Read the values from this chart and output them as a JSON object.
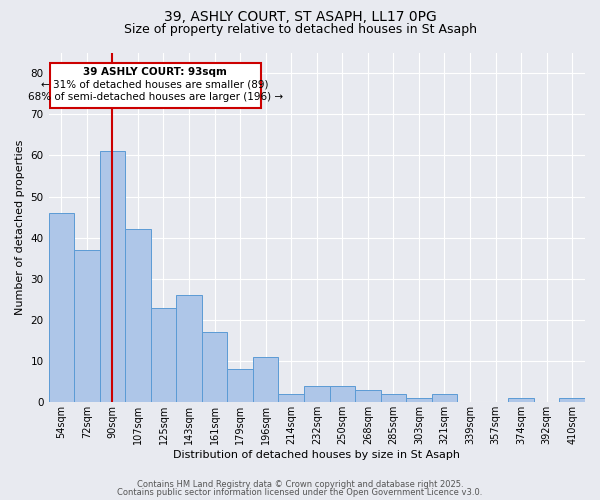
{
  "title": "39, ASHLY COURT, ST ASAPH, LL17 0PG",
  "subtitle": "Size of property relative to detached houses in St Asaph",
  "xlabel": "Distribution of detached houses by size in St Asaph",
  "ylabel": "Number of detached properties",
  "categories": [
    "54sqm",
    "72sqm",
    "90sqm",
    "107sqm",
    "125sqm",
    "143sqm",
    "161sqm",
    "179sqm",
    "196sqm",
    "214sqm",
    "232sqm",
    "250sqm",
    "268sqm",
    "285sqm",
    "303sqm",
    "321sqm",
    "339sqm",
    "357sqm",
    "374sqm",
    "392sqm",
    "410sqm"
  ],
  "values": [
    46,
    37,
    61,
    42,
    23,
    26,
    17,
    8,
    11,
    2,
    4,
    4,
    3,
    2,
    1,
    2,
    0,
    0,
    1,
    0,
    1
  ],
  "bar_color": "#aec6e8",
  "bar_edge_color": "#5b9bd5",
  "vline_color": "#cc0000",
  "annotation_title": "39 ASHLY COURT: 93sqm",
  "annotation_line1": "← 31% of detached houses are smaller (89)",
  "annotation_line2": "68% of semi-detached houses are larger (196) →",
  "annotation_box_color": "#cc0000",
  "ylim": [
    0,
    85
  ],
  "yticks": [
    0,
    10,
    20,
    30,
    40,
    50,
    60,
    70,
    80
  ],
  "background_color": "#e8eaf0",
  "plot_bg_color": "#e8eaf0",
  "footer_line1": "Contains HM Land Registry data © Crown copyright and database right 2025.",
  "footer_line2": "Contains public sector information licensed under the Open Government Licence v3.0.",
  "title_fontsize": 10,
  "subtitle_fontsize": 9
}
